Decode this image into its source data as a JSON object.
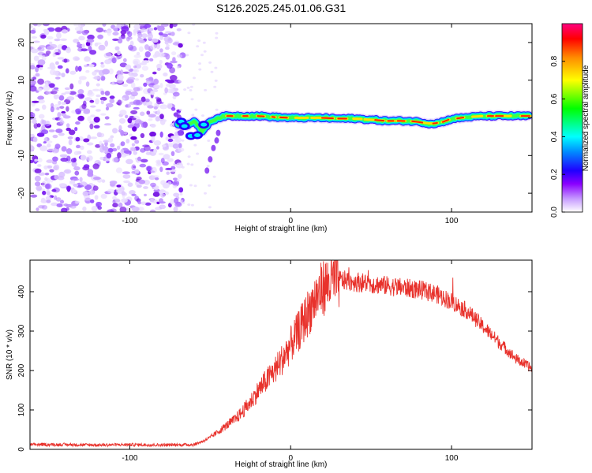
{
  "title": "S126.2025.245.01.06.G31",
  "chart_data": [
    {
      "type": "heatmap",
      "name": "spectrogram",
      "xlabel": "Height of straight line (km)",
      "ylabel": "Frequency (Hz)",
      "xlim": [
        -162,
        150
      ],
      "ylim": [
        -25,
        25
      ],
      "xticks": [
        -100,
        0,
        100
      ],
      "yticks": [
        -20,
        -10,
        0,
        10,
        20
      ],
      "noise_region_x": [
        -162,
        -70
      ],
      "signal_track": {
        "x": [
          -70,
          -65,
          -60,
          -55,
          -50,
          -45,
          -40,
          -30,
          -20,
          -10,
          0,
          10,
          20,
          30,
          40,
          50,
          60,
          70,
          80,
          85,
          90,
          95,
          100,
          110,
          120,
          130,
          140,
          148
        ],
        "hz": [
          -1.5,
          -2.0,
          -1.0,
          -3.5,
          -1.0,
          0.0,
          0.5,
          0.5,
          0.5,
          0.2,
          0.0,
          0.0,
          0.0,
          -0.2,
          -0.2,
          -0.5,
          -0.8,
          -0.8,
          -1.0,
          -1.5,
          -1.5,
          -1.0,
          -0.3,
          0.2,
          0.5,
          0.5,
          0.5,
          0.5
        ]
      },
      "colorbar": {
        "label": "Normalized spectral amplitude",
        "ticks": [
          "0.0",
          "0.2",
          "0.4",
          "0.6",
          "0.8"
        ],
        "range": [
          0,
          1
        ],
        "colors": [
          "#ffffff",
          "#b96bff",
          "#7a00e6",
          "#0000ff",
          "#00ffff",
          "#00ff00",
          "#ffff00",
          "#ff8000",
          "#ff0000",
          "#ff0080"
        ]
      }
    },
    {
      "type": "line",
      "name": "snr",
      "xlabel": "Height of straight line (km)",
      "ylabel": "SNR (10 * v/v)",
      "xlim": [
        -162,
        150
      ],
      "ylim": [
        0,
        480
      ],
      "xticks": [
        -100,
        0,
        100
      ],
      "yticks": [
        0,
        100,
        200,
        300,
        400
      ],
      "color": "#e8322c",
      "series": [
        {
          "name": "SNR",
          "x": [
            -162,
            -140,
            -120,
            -100,
            -80,
            -60,
            -55,
            -50,
            -45,
            -40,
            -35,
            -30,
            -25,
            -20,
            -15,
            -10,
            -5,
            0,
            5,
            10,
            15,
            20,
            25,
            30,
            40,
            50,
            60,
            70,
            80,
            90,
            100,
            110,
            120,
            130,
            140,
            150
          ],
          "y": [
            12,
            12,
            11,
            12,
            11,
            12,
            20,
            30,
            45,
            60,
            75,
            95,
            120,
            150,
            175,
            200,
            230,
            265,
            300,
            340,
            380,
            410,
            425,
            430,
            425,
            420,
            415,
            410,
            405,
            395,
            375,
            350,
            310,
            270,
            230,
            205
          ]
        }
      ]
    }
  ]
}
